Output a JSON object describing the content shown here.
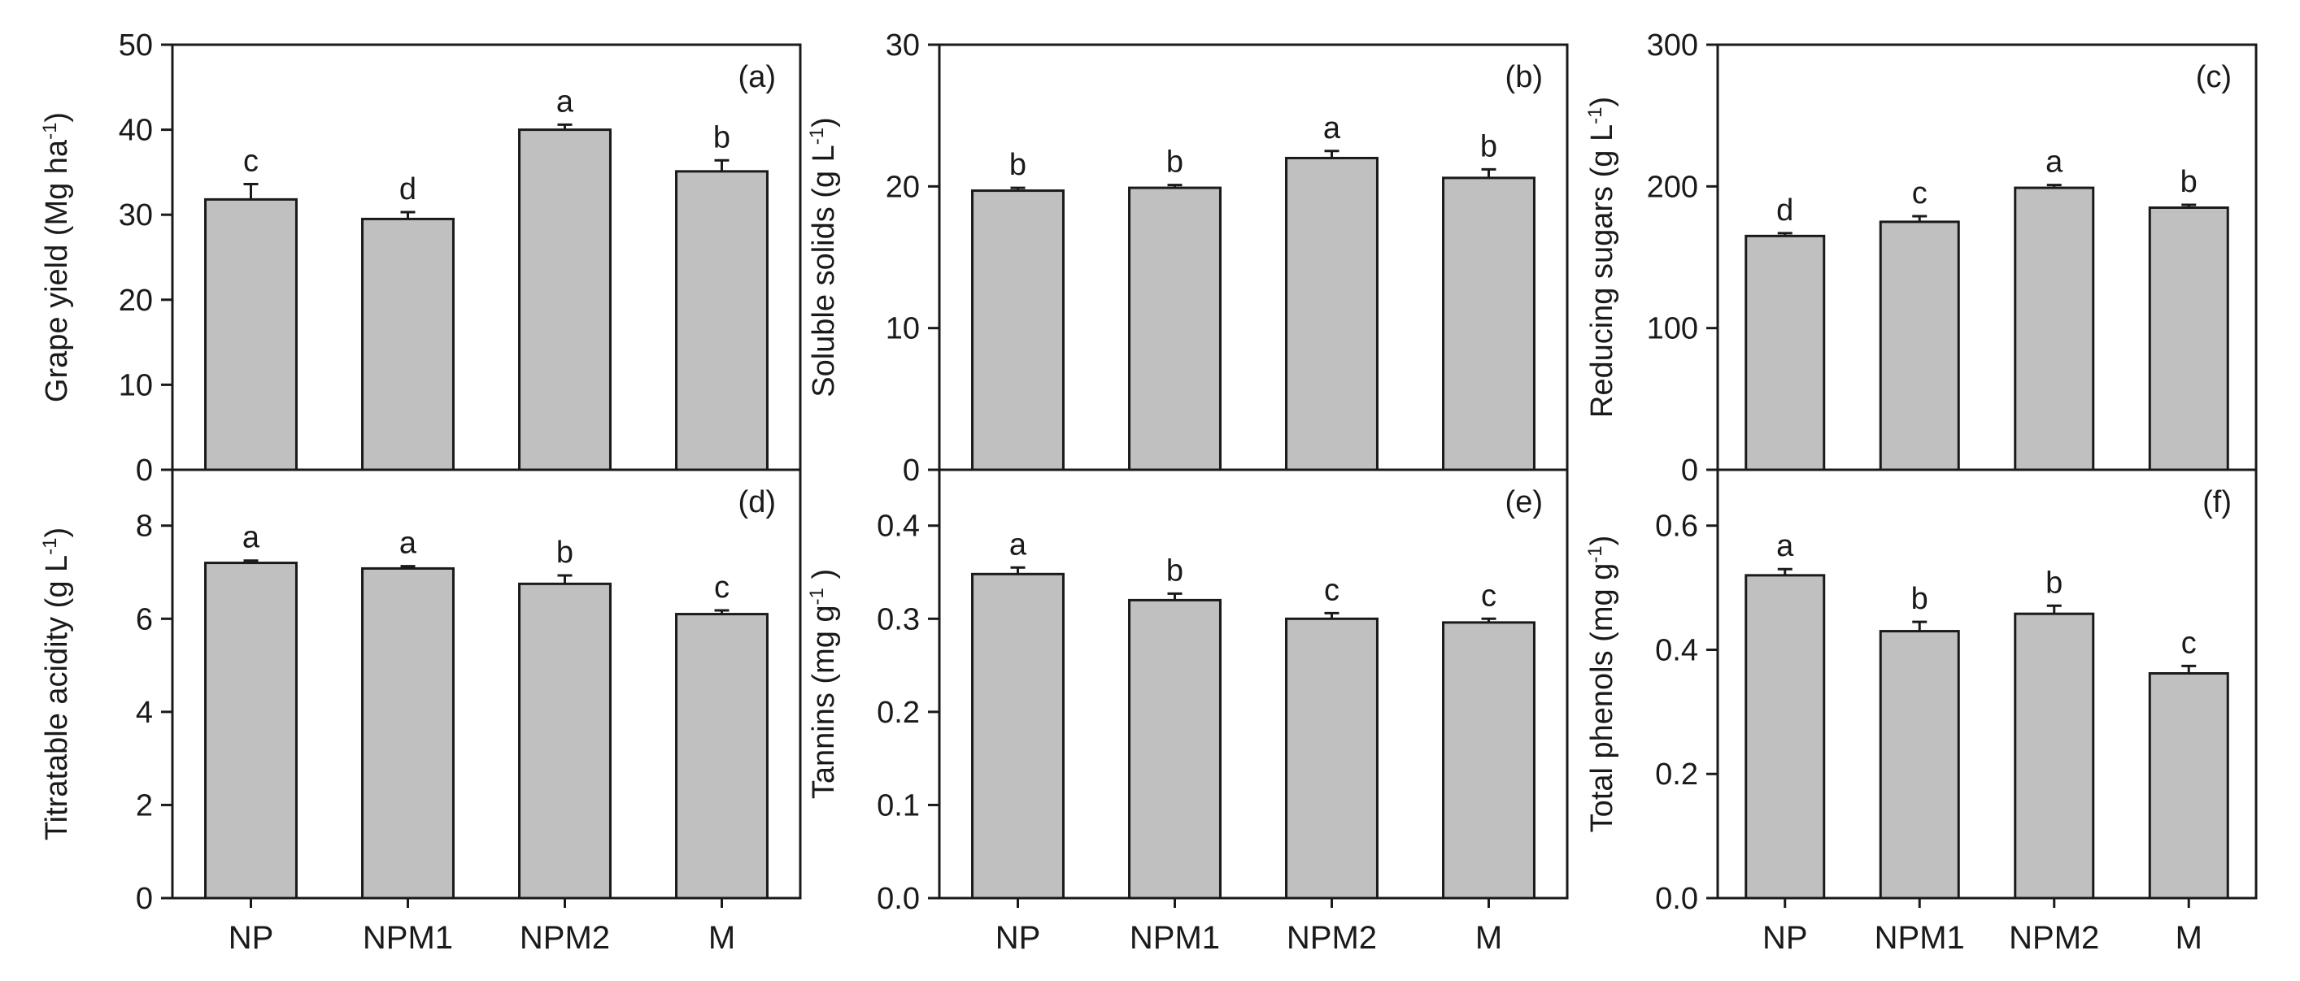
{
  "figure": {
    "categories": [
      "NP",
      "NPM1",
      "NPM2",
      "M"
    ],
    "bar_color": "#c0c0c0",
    "bar_edge_color": "#1a1a1a"
  },
  "chart_data": [
    {
      "type": "bar",
      "panel_label": "(a)",
      "title": "",
      "ylabel": [
        {
          "t": "Grape yield (Mg ha"
        },
        {
          "t": "-1",
          "sup": true
        },
        {
          "t": ")"
        }
      ],
      "categories": [
        "NP",
        "NPM1",
        "NPM2",
        "M"
      ],
      "values": [
        31.8,
        29.5,
        40.0,
        35.1
      ],
      "errors": [
        1.8,
        0.8,
        0.6,
        1.3
      ],
      "significance": [
        "c",
        "d",
        "a",
        "b"
      ],
      "ylim": [
        0,
        50
      ],
      "yticks": [
        0,
        10,
        20,
        30,
        40,
        50
      ],
      "ytick_labels": [
        "0",
        "10",
        "20",
        "30",
        "40",
        "50"
      ]
    },
    {
      "type": "bar",
      "panel_label": "(b)",
      "title": "",
      "ylabel": [
        {
          "t": "Soluble solids (g L"
        },
        {
          "t": "-1",
          "sup": true
        },
        {
          "t": ")"
        }
      ],
      "categories": [
        "NP",
        "NPM1",
        "NPM2",
        "M"
      ],
      "values": [
        19.7,
        19.9,
        22.0,
        20.6
      ],
      "errors": [
        0.2,
        0.2,
        0.5,
        0.6
      ],
      "significance": [
        "b",
        "b",
        "a",
        "b"
      ],
      "ylim": [
        0,
        30
      ],
      "yticks": [
        0,
        10,
        20,
        30
      ],
      "ytick_labels": [
        "0",
        "10",
        "20",
        "30"
      ]
    },
    {
      "type": "bar",
      "panel_label": "(c)",
      "title": "",
      "ylabel": [
        {
          "t": "Reducing sugars (g L"
        },
        {
          "t": "-1",
          "sup": true
        },
        {
          "t": ")"
        }
      ],
      "categories": [
        "NP",
        "NPM1",
        "NPM2",
        "M"
      ],
      "values": [
        165,
        175,
        199,
        185
      ],
      "errors": [
        2,
        4,
        2,
        2
      ],
      "significance": [
        "d",
        "c",
        "a",
        "b"
      ],
      "ylim": [
        0,
        300
      ],
      "yticks": [
        0,
        100,
        200,
        300
      ],
      "ytick_labels": [
        "0",
        "100",
        "200",
        "300"
      ]
    },
    {
      "type": "bar",
      "panel_label": "(d)",
      "title": "",
      "ylabel": [
        {
          "t": "Titratable acidity (g L"
        },
        {
          "t": "-1",
          "sup": true
        },
        {
          "t": ")"
        }
      ],
      "categories": [
        "NP",
        "NPM1",
        "NPM2",
        "M"
      ],
      "values": [
        7.2,
        7.08,
        6.75,
        6.1
      ],
      "errors": [
        0.05,
        0.05,
        0.18,
        0.08
      ],
      "significance": [
        "a",
        "a",
        "b",
        "c"
      ],
      "ylim": [
        0,
        9.2
      ],
      "yticks": [
        0,
        2,
        4,
        6,
        8
      ],
      "ytick_labels": [
        "0",
        "2",
        "4",
        "6",
        "8"
      ]
    },
    {
      "type": "bar",
      "panel_label": "(e)",
      "title": "",
      "ylabel": [
        {
          "t": "Tannins (mg g"
        },
        {
          "t": "-1",
          "sup": true
        },
        {
          "t": " )"
        }
      ],
      "categories": [
        "NP",
        "NPM1",
        "NPM2",
        "M"
      ],
      "values": [
        0.348,
        0.32,
        0.3,
        0.296
      ],
      "errors": [
        0.007,
        0.007,
        0.006,
        0.004
      ],
      "significance": [
        "a",
        "b",
        "c",
        "c"
      ],
      "ylim": [
        0,
        0.46
      ],
      "yticks": [
        0,
        0.1,
        0.2,
        0.3,
        0.4
      ],
      "ytick_labels": [
        "0.0",
        "0.1",
        "0.2",
        "0.3",
        "0.4"
      ]
    },
    {
      "type": "bar",
      "panel_label": "(f)",
      "title": "",
      "ylabel": [
        {
          "t": "Total phenols (mg g"
        },
        {
          "t": "-1",
          "sup": true
        },
        {
          "t": ")"
        }
      ],
      "categories": [
        "NP",
        "NPM1",
        "NPM2",
        "M"
      ],
      "values": [
        0.52,
        0.43,
        0.458,
        0.362
      ],
      "errors": [
        0.01,
        0.015,
        0.013,
        0.012
      ],
      "significance": [
        "a",
        "b",
        "b",
        "c"
      ],
      "ylim": [
        0,
        0.69
      ],
      "yticks": [
        0,
        0.2,
        0.4,
        0.6
      ],
      "ytick_labels": [
        "0.0",
        "0.2",
        "0.4",
        "0.6"
      ]
    }
  ]
}
